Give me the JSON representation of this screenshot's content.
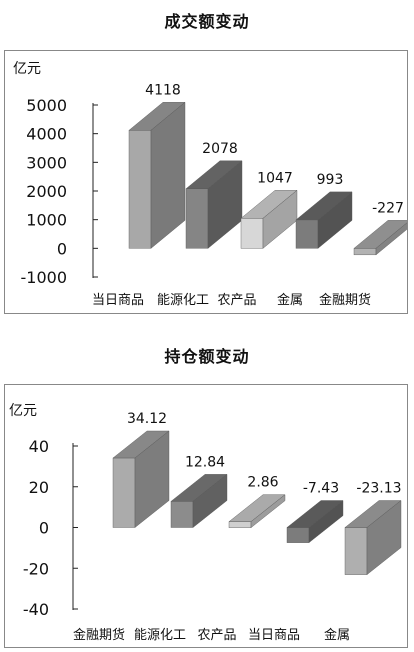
{
  "chart_data": [
    {
      "type": "bar",
      "title": "成交额变动",
      "unit_label": "亿元",
      "categories": [
        "当日商品",
        "能源化工",
        "农产品",
        "金属",
        "金融期货"
      ],
      "values": [
        4118,
        2078,
        1047,
        993,
        -227
      ],
      "value_labels": [
        "4118",
        "2078",
        "1047",
        "993",
        "-227"
      ],
      "bar_colors": [
        "#9c9c9c",
        "#747474",
        "#d2d2d2",
        "#6a6a6a",
        "#a8a8a8"
      ],
      "ylim": [
        -1000,
        5000
      ],
      "yticks": [
        -1000,
        0,
        1000,
        2000,
        3000,
        4000,
        5000
      ],
      "ytick_labels": [
        "-1000",
        "0",
        "1000",
        "2000",
        "3000",
        "4000",
        "5000"
      ],
      "grid": false,
      "style": "3d-column"
    },
    {
      "type": "bar",
      "title": "持仓额变动",
      "unit_label": "亿元",
      "categories": [
        "金融期货",
        "能源化工",
        "农产品",
        "当日商品",
        "金属"
      ],
      "values": [
        34.12,
        12.84,
        2.86,
        -7.43,
        -23.13
      ],
      "value_labels": [
        "34.12",
        "12.84",
        "2.86",
        "-7.43",
        "-23.13"
      ],
      "bar_colors": [
        "#a0a0a0",
        "#7c7c7c",
        "#c8c8c8",
        "#6a6a6a",
        "#a4a4a4"
      ],
      "ylim": [
        -40,
        40
      ],
      "yticks": [
        -40,
        -20,
        0,
        20,
        40
      ],
      "ytick_labels": [
        "-40",
        "-20",
        "0",
        "20",
        "40"
      ],
      "grid": false,
      "style": "3d-column"
    }
  ]
}
